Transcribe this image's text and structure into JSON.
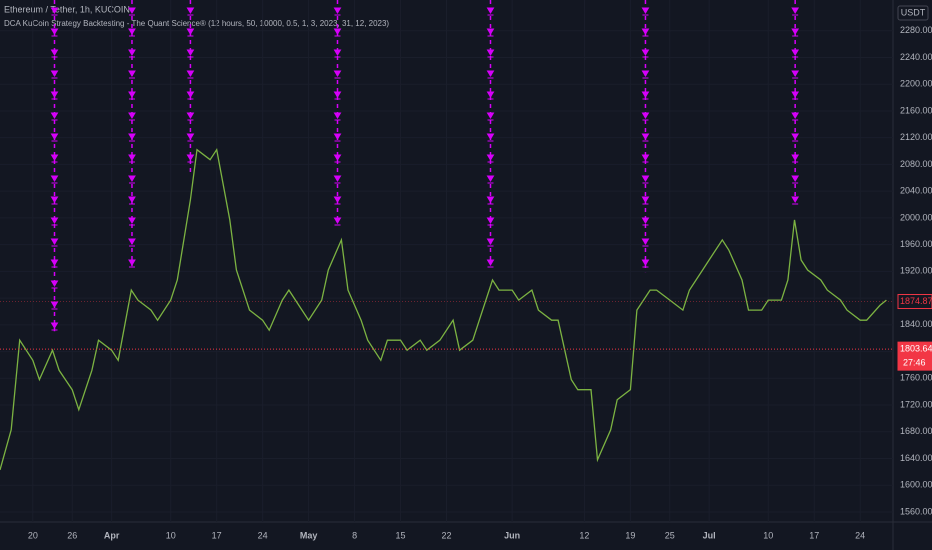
{
  "chart_data": {
    "type": "line",
    "title": "Ethereum / Tether, 1h, KUCOIN",
    "subtitle": "DCA KuCoin Strategy Backtesting - The Quant Science® (12 hours, 50, 10000, 0.5, 1, 3, 2023, 31, 12, 2023)",
    "currency": "USDT",
    "x": [
      -5,
      -3.3,
      -2,
      0,
      1,
      3,
      4,
      6,
      7,
      9,
      10,
      12,
      13,
      15,
      16,
      18,
      19,
      21,
      22,
      24,
      25,
      27,
      28,
      30,
      31,
      33,
      35,
      36,
      38,
      39,
      41,
      42,
      44,
      45,
      47,
      48,
      50,
      51,
      53,
      54,
      56,
      57,
      59,
      60,
      62,
      64,
      65,
      67,
      68,
      70,
      71,
      73,
      74,
      76,
      77,
      79,
      80,
      82,
      83,
      85,
      86,
      88,
      89,
      91,
      92,
      94,
      95,
      97,
      99,
      100,
      102,
      103,
      105,
      106,
      108,
      109,
      111,
      112,
      114,
      115,
      116,
      117,
      118,
      120,
      121,
      123,
      124,
      126,
      127,
      129,
      130
    ],
    "series": [
      {
        "name": "ETH/USDT",
        "color": "#7cb342",
        "values": [
          1623,
          1683,
          1817,
          1787,
          1758,
          1802,
          1772,
          1743,
          1713,
          1772,
          1817,
          1802,
          1787,
          1892,
          1877,
          1862,
          1847,
          1877,
          1907,
          2027,
          2102,
          2087,
          2102,
          1997,
          1922,
          1862,
          1847,
          1832,
          1877,
          1892,
          1862,
          1847,
          1877,
          1922,
          1967,
          1892,
          1847,
          1817,
          1787,
          1817,
          1817,
          1802,
          1817,
          1802,
          1817,
          1847,
          1802,
          1817,
          1847,
          1907,
          1892,
          1892,
          1877,
          1892,
          1862,
          1847,
          1847,
          1758,
          1743,
          1743,
          1638,
          1683,
          1728,
          1743,
          1862,
          1892,
          1892,
          1877,
          1862,
          1892,
          1922,
          1937,
          1967,
          1952,
          1907,
          1862,
          1862,
          1877,
          1877,
          1907,
          1997,
          1937,
          1922,
          1907,
          1892,
          1877,
          1862,
          1847,
          1847,
          1869,
          1877
        ]
      }
    ],
    "signals_x": [
      3.3,
      15.1,
      24,
      46.4,
      69.7,
      93.3,
      116.1
    ],
    "signal_color": "#d500f9",
    "xlim": [
      -5,
      131
    ],
    "xticks": [
      {
        "value": 0,
        "label": "20"
      },
      {
        "value": 6,
        "label": "26"
      },
      {
        "value": 12,
        "label": "Apr"
      },
      {
        "value": 21,
        "label": "10"
      },
      {
        "value": 28,
        "label": "17"
      },
      {
        "value": 35,
        "label": "24"
      },
      {
        "value": 42,
        "label": "May"
      },
      {
        "value": 49,
        "label": "8"
      },
      {
        "value": 56,
        "label": "15"
      },
      {
        "value": 63,
        "label": "22"
      },
      {
        "value": 73,
        "label": "Jun"
      },
      {
        "value": 84,
        "label": "12"
      },
      {
        "value": 91,
        "label": "19"
      },
      {
        "value": 97,
        "label": "25"
      },
      {
        "value": 103,
        "label": "Jul"
      },
      {
        "value": 112,
        "label": "10"
      },
      {
        "value": 119,
        "label": "17"
      },
      {
        "value": 126,
        "label": "24"
      }
    ],
    "ylim": [
      1545,
      2326
    ],
    "yticks": [
      {
        "value": 1560,
        "label": "1560.00"
      },
      {
        "value": 1600,
        "label": "1600.00"
      },
      {
        "value": 1640,
        "label": "1640.00"
      },
      {
        "value": 1680,
        "label": "1680.00"
      },
      {
        "value": 1720,
        "label": "1720.00"
      },
      {
        "value": 1760,
        "label": "1760.00"
      },
      {
        "value": 1800,
        "label": "1800.00"
      },
      {
        "value": 1840,
        "label": "1840.00"
      },
      {
        "value": 1880,
        "label": "1880.00"
      },
      {
        "value": 1920,
        "label": "1920.00"
      },
      {
        "value": 1960,
        "label": "1960.00"
      },
      {
        "value": 2000,
        "label": "2000.00"
      },
      {
        "value": 2040,
        "label": "2040.00"
      },
      {
        "value": 2080,
        "label": "2080.00"
      },
      {
        "value": 2120,
        "label": "2120.00"
      },
      {
        "value": 2160,
        "label": "2160.00"
      },
      {
        "value": 2200,
        "label": "2200.00"
      },
      {
        "value": 2240,
        "label": "2240.00"
      },
      {
        "value": 2280,
        "label": "2280.00"
      }
    ],
    "price_tags": [
      {
        "value": 1874.87,
        "label": "1874.87",
        "style": "outline"
      },
      {
        "value": 1803.64,
        "label": "1803.64",
        "style": "filled"
      }
    ],
    "countdown": "27:46"
  }
}
